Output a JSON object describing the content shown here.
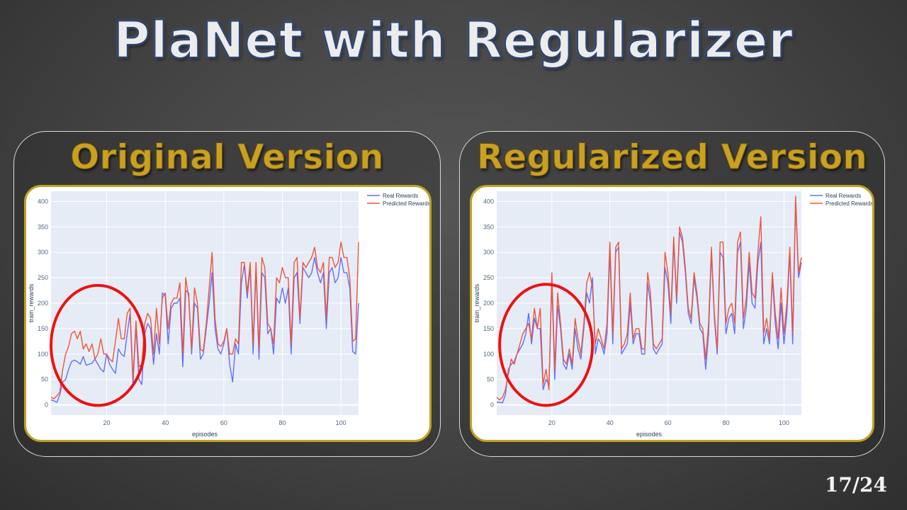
{
  "slide": {
    "title": "PlaNet with Regularizer",
    "page_number": "17/24"
  },
  "panels": [
    {
      "title": "Original Version"
    },
    {
      "title": "Regularized Version"
    }
  ],
  "colors": {
    "real": "#636efa",
    "predicted": "#ef553b",
    "highlight_circle": "#ee1111",
    "plot_bg": "#e5ecf6",
    "title_gold": "#c9a021"
  },
  "chart_data": [
    {
      "type": "line",
      "xlabel": "episodes",
      "ylabel": "train_rewards",
      "xlim": [
        1,
        106
      ],
      "ylim": [
        -20,
        420
      ],
      "xticks": [
        20,
        40,
        60,
        80,
        100
      ],
      "yticks": [
        0,
        50,
        100,
        150,
        200,
        250,
        300,
        350,
        400
      ],
      "grid": true,
      "legend_position": "top-right",
      "highlight": {
        "center_x": 17,
        "center_y": 117,
        "radius_x": 16,
        "radius_y": 118
      },
      "series": [
        {
          "name": "Real Rewards",
          "x": [
            1,
            2,
            3,
            4,
            5,
            6,
            7,
            8,
            9,
            10,
            11,
            12,
            13,
            14,
            15,
            16,
            17,
            18,
            19,
            20,
            21,
            22,
            23,
            24,
            25,
            26,
            27,
            28,
            29,
            30,
            31,
            32,
            33,
            34,
            35,
            36,
            37,
            38,
            39,
            40,
            41,
            42,
            43,
            44,
            45,
            46,
            47,
            48,
            49,
            50,
            51,
            52,
            53,
            54,
            55,
            56,
            57,
            58,
            59,
            60,
            61,
            62,
            63,
            64,
            65,
            66,
            67,
            68,
            69,
            70,
            71,
            72,
            73,
            74,
            75,
            76,
            77,
            78,
            79,
            80,
            81,
            82,
            83,
            84,
            85,
            86,
            87,
            88,
            89,
            90,
            91,
            92,
            93,
            94,
            95,
            96,
            97,
            98,
            99,
            100,
            101,
            102,
            103,
            104,
            105,
            106
          ],
          "y": [
            10,
            8,
            5,
            20,
            45,
            50,
            70,
            85,
            88,
            85,
            80,
            95,
            78,
            80,
            82,
            90,
            80,
            70,
            65,
            100,
            80,
            70,
            62,
            110,
            100,
            95,
            140,
            180,
            40,
            155,
            50,
            40,
            140,
            160,
            150,
            80,
            140,
            100,
            220,
            215,
            120,
            190,
            200,
            200,
            210,
            75,
            225,
            220,
            100,
            200,
            190,
            90,
            100,
            150,
            200,
            260,
            150,
            110,
            100,
            120,
            150,
            80,
            45,
            120,
            100,
            240,
            275,
            210,
            270,
            100,
            270,
            90,
            260,
            250,
            140,
            150,
            100,
            210,
            200,
            230,
            200,
            230,
            100,
            250,
            260,
            160,
            270,
            260,
            250,
            260,
            290,
            260,
            240,
            260,
            150,
            260,
            270,
            240,
            250,
            290,
            260,
            260,
            230,
            105,
            100,
            200
          ]
        },
        {
          "name": "Predicted Rewards",
          "x": [
            1,
            2,
            3,
            4,
            5,
            6,
            7,
            8,
            9,
            10,
            11,
            12,
            13,
            14,
            15,
            16,
            17,
            18,
            19,
            20,
            21,
            22,
            23,
            24,
            25,
            26,
            27,
            28,
            29,
            30,
            31,
            32,
            33,
            34,
            35,
            36,
            37,
            38,
            39,
            40,
            41,
            42,
            43,
            44,
            45,
            46,
            47,
            48,
            49,
            50,
            51,
            52,
            53,
            54,
            55,
            56,
            57,
            58,
            59,
            60,
            61,
            62,
            63,
            64,
            65,
            66,
            67,
            68,
            69,
            70,
            71,
            72,
            73,
            74,
            75,
            76,
            77,
            78,
            79,
            80,
            81,
            82,
            83,
            84,
            85,
            86,
            87,
            88,
            89,
            90,
            91,
            92,
            93,
            94,
            95,
            96,
            97,
            98,
            99,
            100,
            101,
            102,
            103,
            104,
            105,
            106
          ],
          "y": [
            15,
            12,
            18,
            25,
            70,
            100,
            115,
            140,
            145,
            130,
            145,
            110,
            120,
            105,
            120,
            90,
            100,
            130,
            100,
            100,
            90,
            85,
            125,
            170,
            130,
            130,
            180,
            190,
            50,
            165,
            75,
            80,
            160,
            180,
            170,
            100,
            190,
            120,
            210,
            220,
            150,
            200,
            210,
            210,
            240,
            100,
            250,
            210,
            110,
            230,
            200,
            110,
            105,
            160,
            230,
            300,
            170,
            120,
            115,
            125,
            150,
            100,
            100,
            130,
            120,
            280,
            280,
            220,
            280,
            120,
            280,
            110,
            290,
            270,
            160,
            150,
            120,
            250,
            240,
            270,
            250,
            250,
            120,
            280,
            290,
            170,
            280,
            270,
            280,
            290,
            310,
            270,
            260,
            280,
            170,
            290,
            290,
            270,
            280,
            320,
            290,
            290,
            250,
            125,
            130,
            320
          ]
        }
      ]
    },
    {
      "type": "line",
      "xlabel": "episodes",
      "ylabel": "train_rewards",
      "xlim": [
        1,
        106
      ],
      "ylim": [
        -20,
        420
      ],
      "xticks": [
        20,
        40,
        60,
        80,
        100
      ],
      "yticks": [
        0,
        50,
        100,
        150,
        200,
        250,
        300,
        350,
        400
      ],
      "grid": true,
      "legend_position": "top-right",
      "highlight": {
        "center_x": 18,
        "center_y": 118,
        "radius_x": 16,
        "radius_y": 119
      },
      "series": [
        {
          "name": "Real Rewards",
          "x": [
            1,
            2,
            3,
            4,
            5,
            6,
            7,
            8,
            9,
            10,
            11,
            12,
            13,
            14,
            15,
            16,
            17,
            18,
            19,
            20,
            21,
            22,
            23,
            24,
            25,
            26,
            27,
            28,
            29,
            30,
            31,
            32,
            33,
            34,
            35,
            36,
            37,
            38,
            39,
            40,
            41,
            42,
            43,
            44,
            45,
            46,
            47,
            48,
            49,
            50,
            51,
            52,
            53,
            54,
            55,
            56,
            57,
            58,
            59,
            60,
            61,
            62,
            63,
            64,
            65,
            66,
            67,
            68,
            69,
            70,
            71,
            72,
            73,
            74,
            75,
            76,
            77,
            78,
            79,
            80,
            81,
            82,
            83,
            84,
            85,
            86,
            87,
            88,
            89,
            90,
            91,
            92,
            93,
            94,
            95,
            96,
            97,
            98,
            99,
            100,
            101,
            102,
            103,
            104,
            105,
            106
          ],
          "y": [
            5,
            5,
            4,
            20,
            70,
            80,
            85,
            100,
            110,
            120,
            140,
            180,
            120,
            170,
            150,
            150,
            30,
            50,
            40,
            240,
            50,
            195,
            150,
            80,
            70,
            100,
            70,
            150,
            110,
            90,
            150,
            220,
            200,
            250,
            100,
            130,
            120,
            100,
            140,
            300,
            120,
            300,
            310,
            100,
            110,
            120,
            200,
            120,
            140,
            140,
            100,
            100,
            240,
            200,
            110,
            100,
            110,
            120,
            270,
            240,
            160,
            320,
            200,
            340,
            320,
            260,
            180,
            160,
            250,
            210,
            150,
            140,
            70,
            140,
            300,
            170,
            100,
            300,
            290,
            140,
            170,
            180,
            140,
            300,
            320,
            150,
            190,
            280,
            200,
            190,
            280,
            320,
            120,
            150,
            120,
            250,
            160,
            110,
            200,
            120,
            180,
            300,
            120,
            400,
            250,
            280
          ]
        },
        {
          "name": "Predicted Rewards",
          "x": [
            1,
            2,
            3,
            4,
            5,
            6,
            7,
            8,
            9,
            10,
            11,
            12,
            13,
            14,
            15,
            16,
            17,
            18,
            19,
            20,
            21,
            22,
            23,
            24,
            25,
            26,
            27,
            28,
            29,
            30,
            31,
            32,
            33,
            34,
            35,
            36,
            37,
            38,
            39,
            40,
            41,
            42,
            43,
            44,
            45,
            46,
            47,
            48,
            49,
            50,
            51,
            52,
            53,
            54,
            55,
            56,
            57,
            58,
            59,
            60,
            61,
            62,
            63,
            64,
            65,
            66,
            67,
            68,
            69,
            70,
            71,
            72,
            73,
            74,
            75,
            76,
            77,
            78,
            79,
            80,
            81,
            82,
            83,
            84,
            85,
            86,
            87,
            88,
            89,
            90,
            91,
            92,
            93,
            94,
            95,
            96,
            97,
            98,
            99,
            100,
            101,
            102,
            103,
            104,
            105,
            106
          ],
          "y": [
            15,
            10,
            15,
            30,
            60,
            90,
            80,
            100,
            120,
            140,
            150,
            160,
            130,
            190,
            150,
            190,
            40,
            70,
            30,
            260,
            70,
            220,
            160,
            90,
            80,
            110,
            80,
            170,
            130,
            100,
            160,
            240,
            260,
            230,
            120,
            150,
            130,
            110,
            160,
            320,
            140,
            310,
            320,
            110,
            120,
            140,
            220,
            130,
            150,
            150,
            110,
            110,
            260,
            220,
            120,
            110,
            120,
            130,
            300,
            260,
            180,
            330,
            210,
            350,
            330,
            270,
            190,
            170,
            260,
            220,
            160,
            150,
            90,
            160,
            310,
            180,
            110,
            320,
            320,
            160,
            190,
            200,
            160,
            320,
            340,
            170,
            210,
            300,
            220,
            210,
            300,
            370,
            140,
            170,
            130,
            260,
            180,
            130,
            230,
            140,
            200,
            310,
            140,
            410,
            260,
            290
          ]
        }
      ]
    }
  ]
}
